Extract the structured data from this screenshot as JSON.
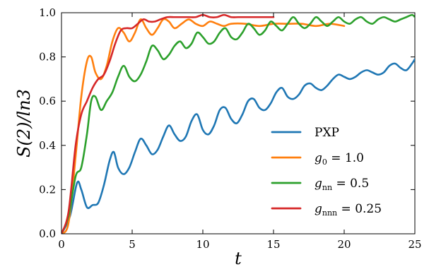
{
  "chart_data": {
    "type": "line",
    "xlabel": "t",
    "ylabel": "S(2)/ln3",
    "xlim": [
      0,
      25
    ],
    "ylim": [
      0,
      1.0
    ],
    "xticks": [
      "0",
      "5",
      "10",
      "15",
      "20",
      "25"
    ],
    "yticks": [
      "0.0",
      "0.2",
      "0.4",
      "0.6",
      "0.8",
      "1.0"
    ],
    "grid": false,
    "legend_position": "lower-right",
    "series": [
      {
        "name": "PXP",
        "color": "#1f77b4",
        "x": [
          0,
          0.6,
          1.1,
          1.4,
          1.8,
          2.2,
          2.6,
          3.0,
          3.4,
          3.7,
          4.0,
          4.4,
          4.8,
          5.2,
          5.6,
          6.0,
          6.4,
          6.8,
          7.2,
          7.6,
          8.0,
          8.4,
          8.8,
          9.2,
          9.6,
          10.0,
          10.4,
          10.8,
          11.2,
          11.6,
          12.0,
          12.4,
          12.8,
          13.2,
          13.6,
          14.0,
          14.4,
          14.8,
          15.2,
          15.6,
          16.0,
          16.4,
          16.8,
          17.2,
          17.6,
          18.0,
          18.4,
          18.8,
          19.2,
          19.6,
          20.0,
          20.4,
          20.8,
          21.2,
          21.6,
          22.0,
          22.4,
          22.8,
          23.2,
          23.6,
          24.0,
          24.4,
          24.8,
          25.0
        ],
        "y": [
          0,
          0.08,
          0.23,
          0.2,
          0.12,
          0.13,
          0.14,
          0.22,
          0.33,
          0.37,
          0.3,
          0.27,
          0.3,
          0.37,
          0.43,
          0.4,
          0.36,
          0.38,
          0.44,
          0.49,
          0.45,
          0.42,
          0.44,
          0.51,
          0.54,
          0.47,
          0.45,
          0.49,
          0.56,
          0.57,
          0.52,
          0.5,
          0.54,
          0.6,
          0.61,
          0.57,
          0.56,
          0.59,
          0.64,
          0.66,
          0.62,
          0.61,
          0.63,
          0.67,
          0.68,
          0.66,
          0.65,
          0.67,
          0.7,
          0.72,
          0.71,
          0.7,
          0.71,
          0.73,
          0.74,
          0.73,
          0.72,
          0.73,
          0.76,
          0.77,
          0.75,
          0.74,
          0.77,
          0.79
        ]
      },
      {
        "name": "g_0 = 1.0",
        "color": "#ff7f0e",
        "x": [
          0,
          0.5,
          1.0,
          1.4,
          1.8,
          2.1,
          2.4,
          2.8,
          3.2,
          3.6,
          4.0,
          4.4,
          4.8,
          5.2,
          5.6,
          6.0,
          6.4,
          6.8,
          7.2,
          7.6,
          8.0,
          8.5,
          9.0,
          9.5,
          10.0,
          10.5,
          11.0,
          11.5,
          12.0,
          13.0,
          14.0,
          15.0,
          16.0,
          17.0,
          18.0,
          19.0,
          20.0
        ],
        "y": [
          0,
          0.05,
          0.35,
          0.62,
          0.78,
          0.8,
          0.73,
          0.7,
          0.76,
          0.87,
          0.93,
          0.91,
          0.87,
          0.91,
          0.97,
          0.93,
          0.9,
          0.93,
          0.97,
          0.96,
          0.93,
          0.95,
          0.97,
          0.95,
          0.94,
          0.96,
          0.95,
          0.94,
          0.95,
          0.95,
          0.94,
          0.95,
          0.95,
          0.95,
          0.94,
          0.95,
          0.94
        ]
      },
      {
        "name": "g_nn = 0.5",
        "color": "#2ca02c",
        "x": [
          0,
          0.5,
          1.0,
          1.4,
          1.8,
          2.1,
          2.4,
          2.8,
          3.2,
          3.6,
          4.0,
          4.4,
          4.8,
          5.2,
          5.6,
          6.0,
          6.4,
          6.8,
          7.2,
          7.6,
          8.0,
          8.4,
          8.8,
          9.2,
          9.6,
          10.0,
          10.4,
          10.8,
          11.2,
          11.6,
          12.0,
          12.4,
          12.8,
          13.2,
          13.6,
          14.0,
          14.4,
          14.8,
          15.2,
          15.6,
          16.0,
          16.4,
          16.8,
          17.2,
          17.6,
          18.0,
          18.4,
          18.8,
          19.2,
          19.6,
          20.0,
          20.4,
          20.8,
          21.2,
          21.6,
          22.0,
          22.4,
          22.8,
          23.2,
          23.6,
          24.0,
          24.4,
          24.8,
          25.0
        ],
        "y": [
          0,
          0.08,
          0.26,
          0.3,
          0.45,
          0.6,
          0.62,
          0.56,
          0.6,
          0.64,
          0.71,
          0.76,
          0.71,
          0.69,
          0.72,
          0.78,
          0.85,
          0.83,
          0.79,
          0.81,
          0.85,
          0.87,
          0.84,
          0.86,
          0.91,
          0.89,
          0.86,
          0.87,
          0.91,
          0.93,
          0.89,
          0.88,
          0.91,
          0.95,
          0.93,
          0.9,
          0.92,
          0.96,
          0.94,
          0.92,
          0.95,
          0.98,
          0.95,
          0.93,
          0.95,
          0.98,
          0.96,
          0.94,
          0.96,
          0.98,
          0.96,
          0.95,
          0.97,
          0.98,
          0.96,
          0.95,
          0.97,
          0.98,
          0.97,
          0.96,
          0.97,
          0.98,
          0.99,
          0.98
        ]
      },
      {
        "name": "g_nnn = 0.25",
        "color": "#d62728",
        "x": [
          0,
          0.5,
          1.0,
          1.4,
          1.8,
          2.2,
          2.6,
          3.0,
          3.4,
          3.8,
          4.2,
          4.6,
          5.0,
          5.4,
          5.8,
          6.2,
          6.6,
          7.0,
          7.5,
          8.0,
          8.5,
          9.0,
          9.5,
          10.0,
          10.5,
          11.0,
          11.5,
          12.0,
          12.5,
          13.0,
          13.5,
          14.0,
          14.5,
          15.0
        ],
        "y": [
          0,
          0.1,
          0.4,
          0.54,
          0.6,
          0.66,
          0.7,
          0.72,
          0.78,
          0.86,
          0.92,
          0.93,
          0.93,
          0.95,
          0.97,
          0.96,
          0.96,
          0.97,
          0.98,
          0.98,
          0.98,
          0.98,
          0.98,
          0.99,
          0.98,
          0.98,
          0.99,
          0.98,
          0.98,
          0.98,
          0.98,
          0.98,
          0.98,
          0.98
        ]
      }
    ],
    "legend": [
      {
        "label": "PXP",
        "sym": "",
        "sub": "",
        "eq": ""
      },
      {
        "label": "",
        "sym": "g",
        "sub": "0",
        "eq": " = 1.0"
      },
      {
        "label": "",
        "sym": "g",
        "sub": "nn",
        "eq": " = 0.5"
      },
      {
        "label": "",
        "sym": "g",
        "sub": "nnn",
        "eq": " = 0.25"
      }
    ]
  }
}
